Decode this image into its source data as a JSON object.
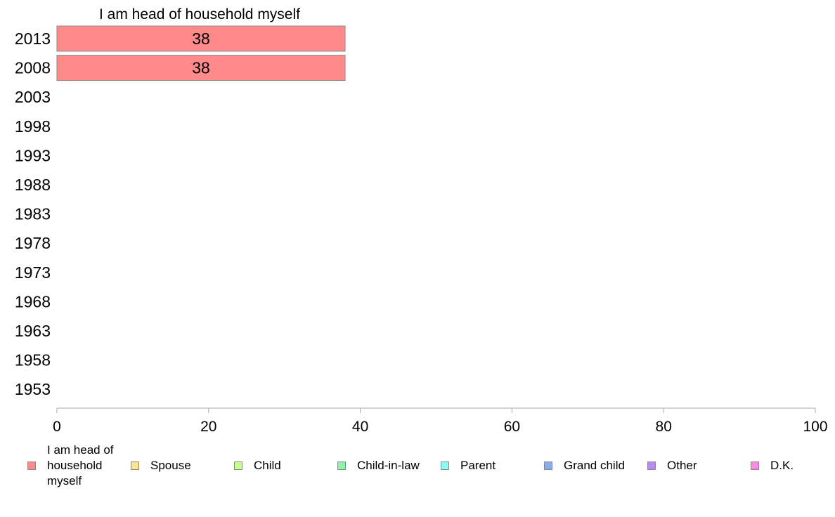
{
  "chart_data": {
    "type": "bar",
    "orientation": "horizontal",
    "panel_title": "I am head of household myself",
    "categories": [
      "2013",
      "2008",
      "2003",
      "1998",
      "1993",
      "1988",
      "1983",
      "1978",
      "1973",
      "1968",
      "1963",
      "1958",
      "1953"
    ],
    "series": [
      {
        "name": "I am head of household myself",
        "color": "#ff8a8a",
        "values": [
          38,
          38,
          null,
          null,
          null,
          null,
          null,
          null,
          null,
          null,
          null,
          null,
          null
        ],
        "labels": [
          "38",
          "38",
          "",
          "",
          "",
          "",
          "",
          "",
          "",
          "",
          "",
          "",
          ""
        ]
      }
    ],
    "xlim": [
      0,
      100
    ],
    "x_ticks": [
      "0",
      "20",
      "40",
      "60",
      "80",
      "100"
    ],
    "grid": false,
    "legend_position": "bottom",
    "legend": [
      {
        "label": "I am head of household myself",
        "color": "#ff8a8a"
      },
      {
        "label": "Spouse",
        "color": "#ffe68a"
      },
      {
        "label": "Child",
        "color": "#c8ff8a"
      },
      {
        "label": "Child-in-law",
        "color": "#8af5a8"
      },
      {
        "label": "Parent",
        "color": "#8afff5"
      },
      {
        "label": "Grand child",
        "color": "#8aaaf5"
      },
      {
        "label": "Other",
        "color": "#b98af5"
      },
      {
        "label": "D.K.",
        "color": "#ff8ae6"
      }
    ]
  }
}
